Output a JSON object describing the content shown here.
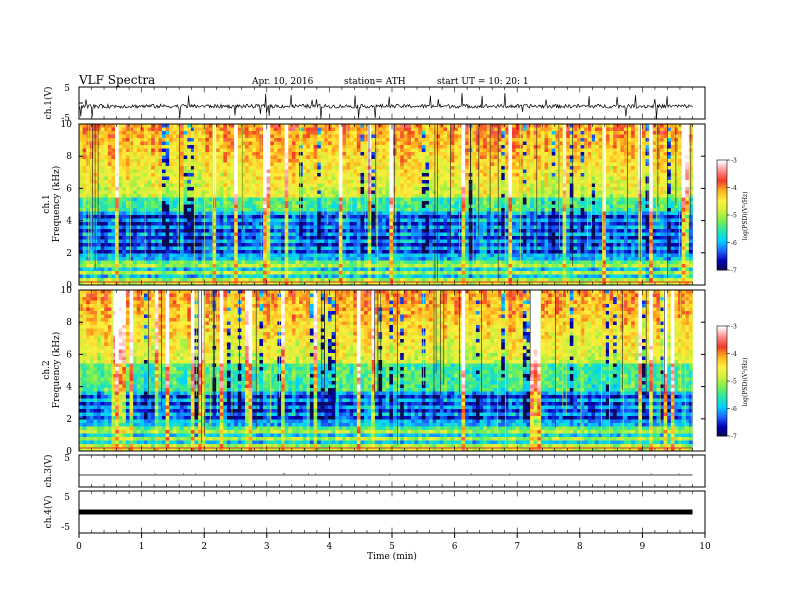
{
  "header": {
    "title": "VLF  Spectra",
    "date": "Apr. 10, 2016",
    "station": "station= ATH",
    "start": "start  UT  =    10: 20: 1"
  },
  "chart_data": [
    {
      "type": "line",
      "name": "ch1-waveform",
      "ylabel": "ch.1(V)",
      "ylim": [
        -5,
        5
      ],
      "yticks": [
        "5",
        "-5"
      ],
      "note": "noisy waveform around -1 V with spikes"
    },
    {
      "type": "heatmap",
      "name": "ch1-spectrogram",
      "ylabel_line1": "ch.1",
      "ylabel_line2": "Frequency  (kHz)",
      "ylim": [
        0,
        10
      ],
      "yticks": [
        "0",
        "2",
        "4",
        "6",
        "8",
        "10"
      ],
      "colorbar": {
        "label": "log(PSD)(V²/Hz)",
        "range": [
          -7,
          -3
        ],
        "ticks": [
          "-3",
          "-4",
          "-5",
          "-6",
          "-7"
        ]
      }
    },
    {
      "type": "heatmap",
      "name": "ch2-spectrogram",
      "ylabel_line1": "ch.2",
      "ylabel_line2": "Frequency  (kHz)",
      "ylim": [
        0,
        10
      ],
      "yticks": [
        "0",
        "2",
        "4",
        "6",
        "8",
        "10"
      ],
      "colorbar": {
        "label": "log(PSD)(V²/Hz)",
        "range": [
          -7,
          -3
        ],
        "ticks": [
          "-3",
          "-4",
          "-5",
          "-6",
          "-7"
        ]
      }
    },
    {
      "type": "line",
      "name": "ch3-waveform",
      "ylabel": "ch.3(V)",
      "ylim": [
        -5,
        5
      ],
      "yticks": [
        "5"
      ],
      "note": "flat line near 0 V"
    },
    {
      "type": "line",
      "name": "ch4-waveform",
      "ylabel": "ch.4(V)",
      "ylim": [
        -5,
        5
      ],
      "yticks": [
        "5",
        "-5"
      ],
      "note": "thick flat band near 0 V"
    }
  ],
  "xaxis": {
    "label": "Time  (min)",
    "range": [
      0,
      10
    ],
    "ticks": [
      "0",
      "1",
      "2",
      "3",
      "4",
      "5",
      "6",
      "7",
      "8",
      "9",
      "10"
    ],
    "data_end": 9.8
  },
  "colors": {
    "colormap": [
      "#0a0a50",
      "#0000b4",
      "#1e64ff",
      "#00d2ff",
      "#28e6aa",
      "#78f050",
      "#d2f03c",
      "#fff03c",
      "#ffb41e",
      "#f03c28",
      "#ff8c8c",
      "#ffffff"
    ]
  }
}
